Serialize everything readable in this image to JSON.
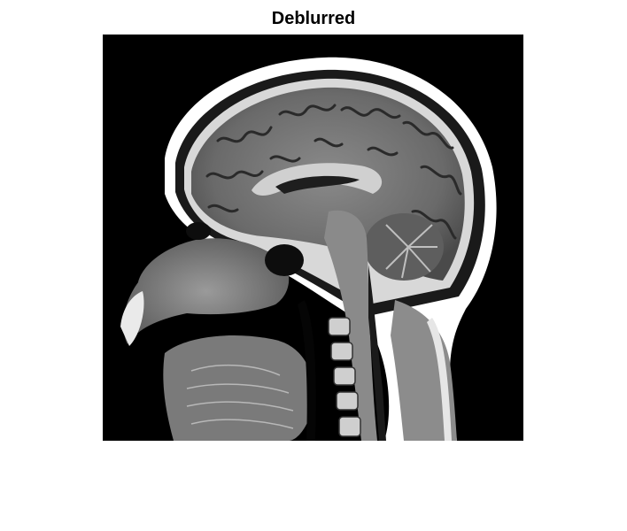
{
  "figure": {
    "title": "Deblurred"
  },
  "image": {
    "subject": "sagittal-brain-mri",
    "colormap": "gray",
    "background_color": "#000000"
  }
}
